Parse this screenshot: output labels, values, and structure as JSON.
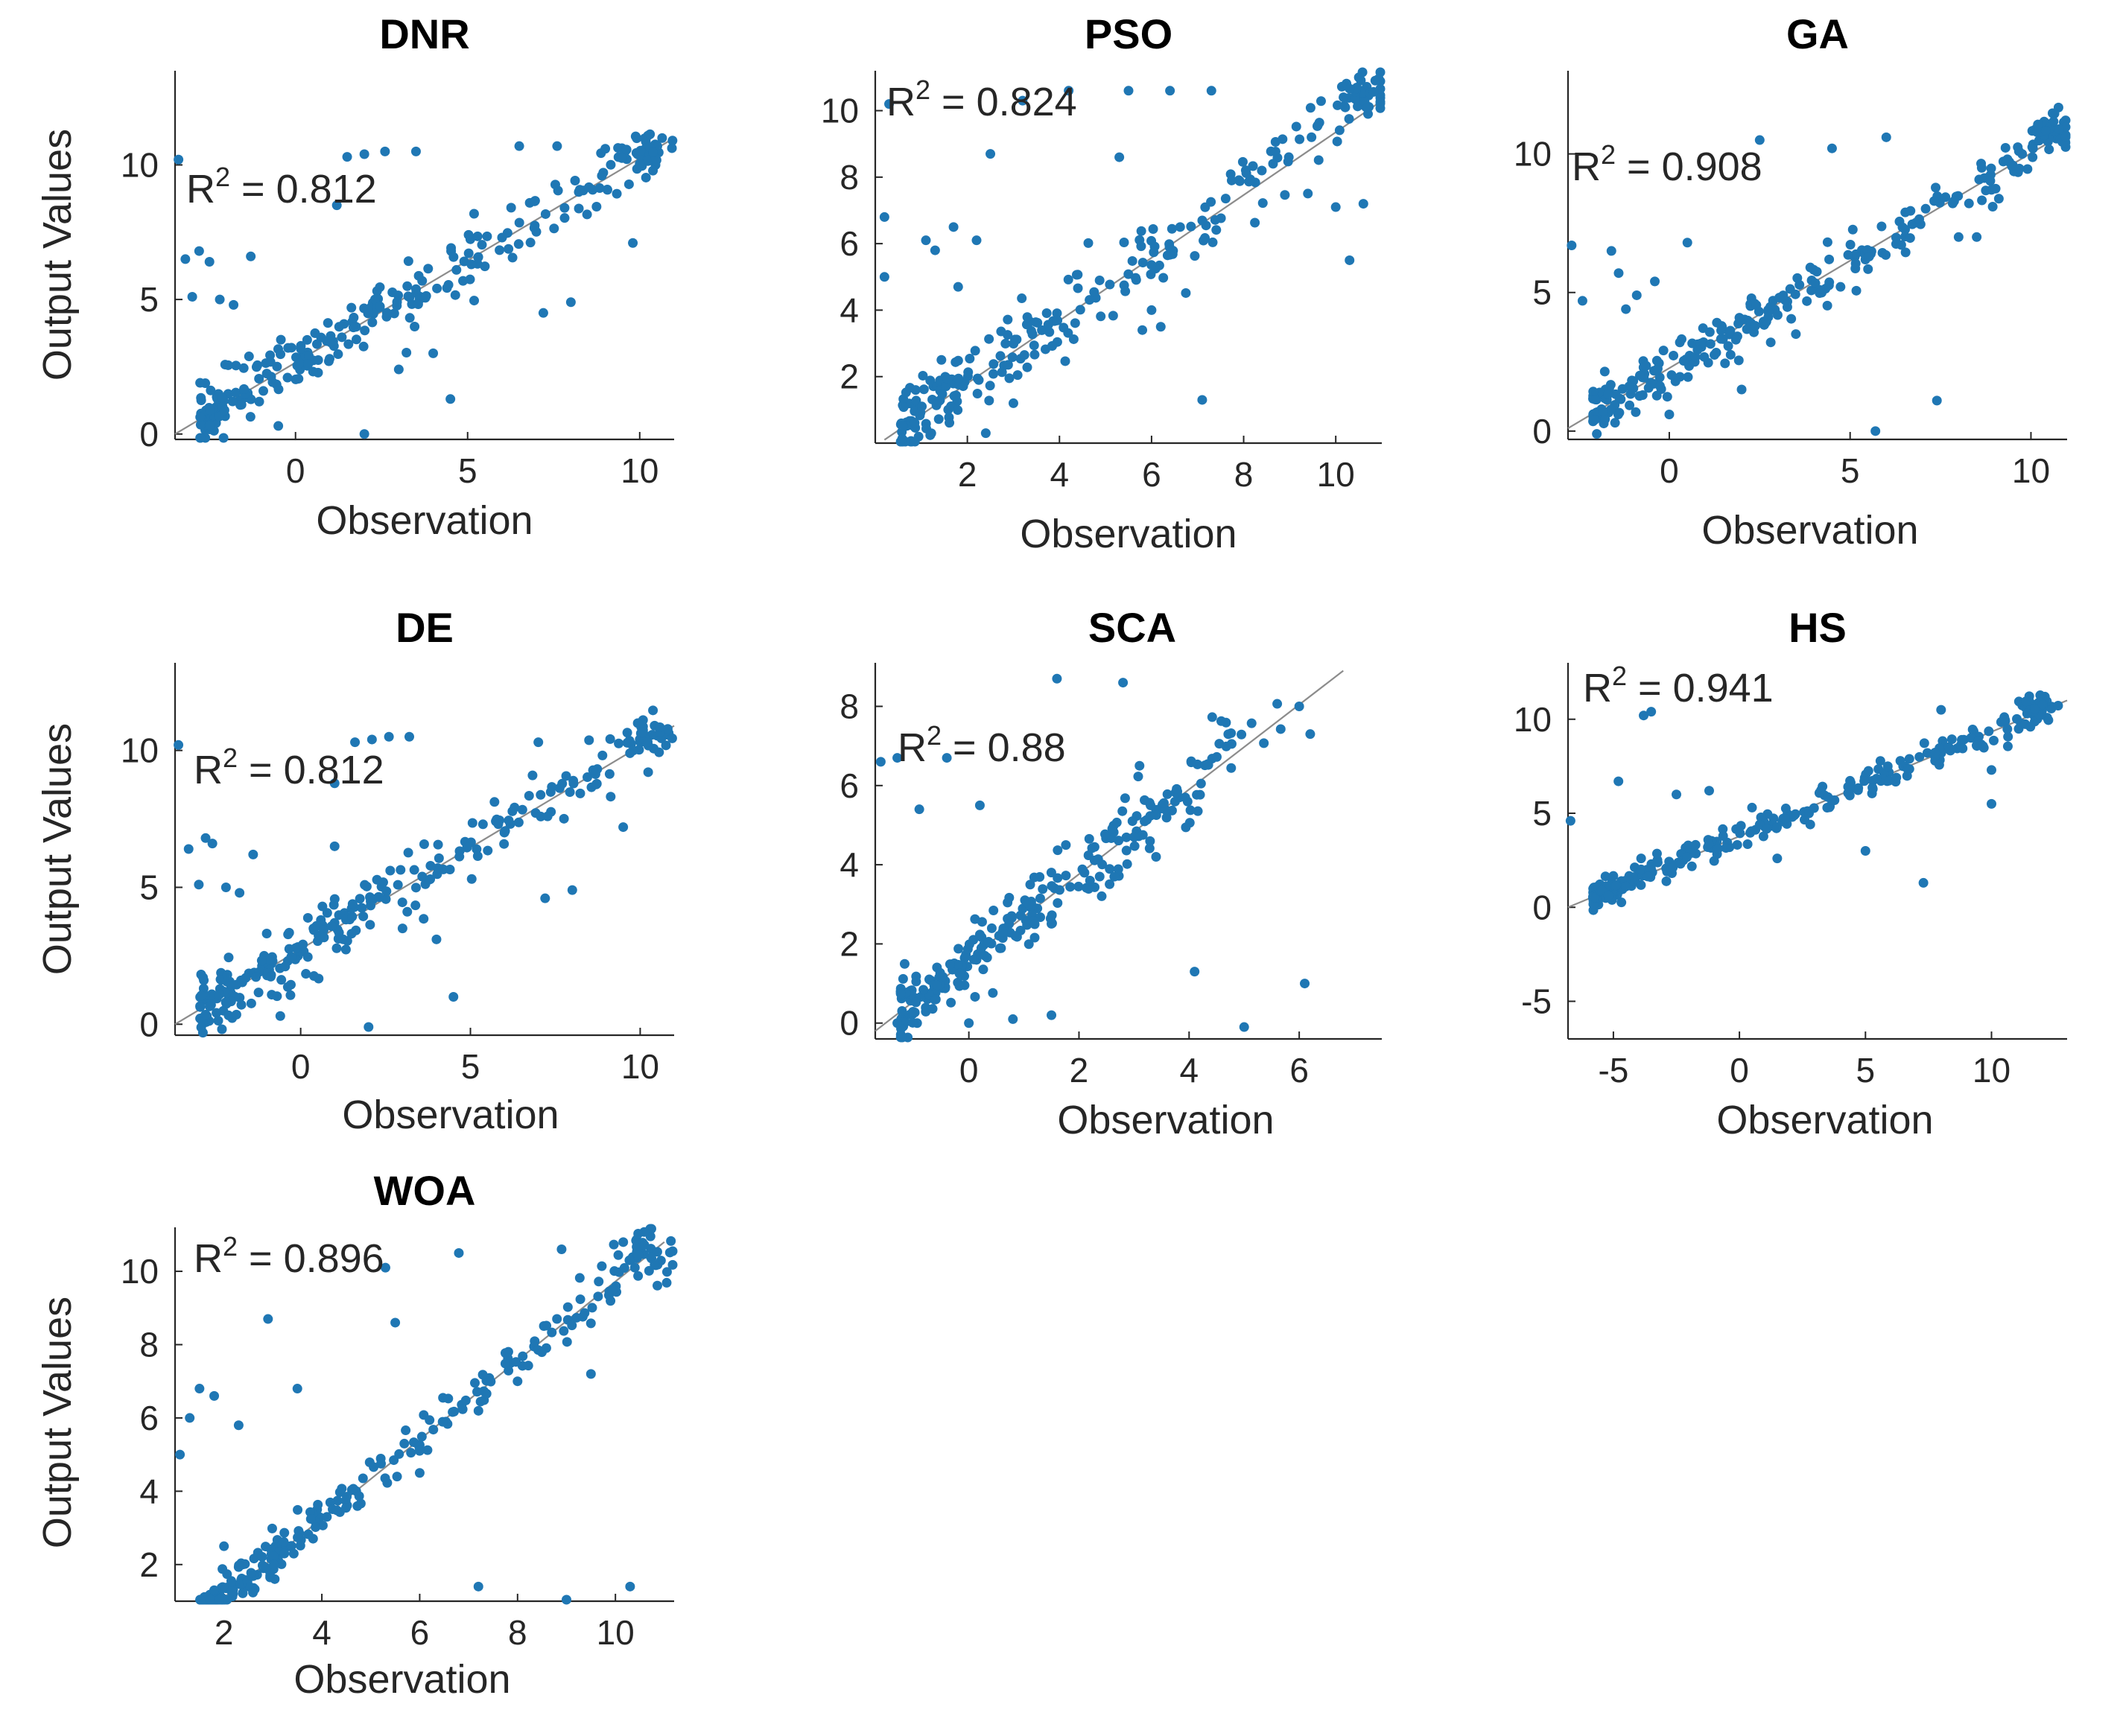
{
  "chart_data": [
    {
      "type": "scatter",
      "title": "DNR",
      "xlabel": "Observation",
      "ylabel": "Output Values",
      "xlim": [
        -3.5,
        11
      ],
      "ylim": [
        -0.2,
        13.5
      ],
      "xticks": [
        0,
        5,
        10
      ],
      "yticks": [
        0,
        5,
        10
      ],
      "r2_prefix": "R",
      "r2_exponent": "2",
      "r2_value": " = 0.812",
      "fit_line": [
        [
          -3.5,
          0.0
        ],
        [
          11,
          11.0
        ]
      ],
      "seed": 11,
      "points_core": 230,
      "core_spread": 0.55,
      "cluster": {
        "center": [
          10.2,
          10.4
        ],
        "n": 40,
        "spread": 0.35
      },
      "outliers": [
        [
          -3.4,
          10.2
        ],
        [
          -3.2,
          6.5
        ],
        [
          -3.0,
          5.1
        ],
        [
          -2.8,
          6.8
        ],
        [
          -2.5,
          6.4
        ],
        [
          -2.2,
          5.0
        ],
        [
          -1.8,
          4.8
        ],
        [
          -1.3,
          6.6
        ],
        [
          1.2,
          8.5
        ],
        [
          1.5,
          10.3
        ],
        [
          2.0,
          10.4
        ],
        [
          2.6,
          10.5
        ],
        [
          3.5,
          10.5
        ],
        [
          6.5,
          10.7
        ],
        [
          7.6,
          10.7
        ],
        [
          9.0,
          10.6
        ],
        [
          4.5,
          1.3
        ],
        [
          2.0,
          0.0
        ],
        [
          -0.5,
          0.3
        ],
        [
          7.2,
          4.5
        ],
        [
          8.0,
          4.9
        ],
        [
          9.8,
          7.1
        ],
        [
          6.0,
          7.3
        ],
        [
          3.0,
          2.4
        ],
        [
          4.0,
          3.0
        ]
      ]
    },
    {
      "type": "scatter",
      "title": "PSO",
      "xlabel": "Observation",
      "ylabel": "",
      "xlim": [
        0.0,
        11.0
      ],
      "ylim": [
        0.0,
        11.2
      ],
      "xticks": [
        2,
        4,
        6,
        8,
        10
      ],
      "yticks": [
        2,
        4,
        6,
        8,
        10
      ],
      "r2_prefix": "R",
      "r2_exponent": "2",
      "r2_value": " = 0.824",
      "fit_line": [
        [
          0.2,
          0.1
        ],
        [
          10.9,
          10.2
        ]
      ],
      "seed": 23,
      "points_core": 230,
      "core_spread": 0.6,
      "cluster": {
        "center": [
          10.6,
          10.5
        ],
        "n": 40,
        "spread": 0.35
      },
      "outliers": [
        [
          0.2,
          6.8
        ],
        [
          0.2,
          5.0
        ],
        [
          0.3,
          10.2
        ],
        [
          1.1,
          6.1
        ],
        [
          1.3,
          5.8
        ],
        [
          1.7,
          6.5
        ],
        [
          1.8,
          4.7
        ],
        [
          2.2,
          6.1
        ],
        [
          2.5,
          8.7
        ],
        [
          3.2,
          10.3
        ],
        [
          4.2,
          10.6
        ],
        [
          5.5,
          10.6
        ],
        [
          6.4,
          10.6
        ],
        [
          7.3,
          10.6
        ],
        [
          5.3,
          8.6
        ],
        [
          7.1,
          1.3
        ],
        [
          6.0,
          4.0
        ],
        [
          5.8,
          3.4
        ],
        [
          6.2,
          3.5
        ],
        [
          10.0,
          7.1
        ],
        [
          10.3,
          5.5
        ],
        [
          10.6,
          7.2
        ],
        [
          3.0,
          1.2
        ],
        [
          2.4,
          0.3
        ]
      ]
    },
    {
      "type": "scatter",
      "title": "GA",
      "xlabel": "Observation",
      "ylabel": "",
      "xlim": [
        -2.8,
        11.0
      ],
      "ylim": [
        -0.3,
        13.0
      ],
      "xticks": [
        0,
        5,
        10
      ],
      "yticks": [
        0,
        5,
        10
      ],
      "r2_prefix": "R",
      "r2_exponent": "2",
      "r2_value": " = 0.908",
      "fit_line": [
        [
          -2.8,
          0.1
        ],
        [
          11.0,
          10.8
        ]
      ],
      "seed": 37,
      "points_core": 240,
      "core_spread": 0.45,
      "cluster": {
        "center": [
          10.6,
          10.8
        ],
        "n": 38,
        "spread": 0.3
      },
      "outliers": [
        [
          -2.7,
          6.7
        ],
        [
          -2.4,
          4.7
        ],
        [
          -1.6,
          6.5
        ],
        [
          -1.4,
          5.7
        ],
        [
          -1.2,
          4.4
        ],
        [
          -0.9,
          4.9
        ],
        [
          -0.4,
          5.4
        ],
        [
          0.5,
          6.8
        ],
        [
          2.5,
          10.5
        ],
        [
          4.5,
          10.2
        ],
        [
          6.0,
          10.6
        ],
        [
          5.7,
          0.0
        ],
        [
          7.4,
          1.1
        ],
        [
          3.5,
          3.5
        ],
        [
          2.0,
          1.5
        ],
        [
          0.0,
          0.6
        ],
        [
          -1.5,
          0.3
        ],
        [
          8.0,
          7.0
        ],
        [
          8.5,
          7.0
        ]
      ]
    },
    {
      "type": "scatter",
      "title": "DE",
      "xlabel": "Observation",
      "ylabel": "Output Values",
      "xlim": [
        -3.7,
        11.0
      ],
      "ylim": [
        -0.4,
        13.2
      ],
      "xticks": [
        0,
        5,
        10
      ],
      "yticks": [
        0,
        5,
        10
      ],
      "r2_prefix": "R",
      "r2_exponent": "2",
      "r2_value": " = 0.812",
      "fit_line": [
        [
          -3.7,
          0.0
        ],
        [
          11.0,
          10.9
        ]
      ],
      "seed": 53,
      "points_core": 230,
      "core_spread": 0.55,
      "cluster": {
        "center": [
          10.2,
          10.4
        ],
        "n": 40,
        "spread": 0.35
      },
      "outliers": [
        [
          -3.6,
          10.2
        ],
        [
          -3.3,
          6.4
        ],
        [
          -3.0,
          5.1
        ],
        [
          -2.8,
          6.8
        ],
        [
          -2.6,
          6.6
        ],
        [
          -2.2,
          5.0
        ],
        [
          -1.8,
          4.8
        ],
        [
          -1.4,
          6.2
        ],
        [
          1.0,
          8.8
        ],
        [
          1.6,
          10.3
        ],
        [
          2.1,
          10.4
        ],
        [
          2.6,
          10.5
        ],
        [
          3.2,
          10.5
        ],
        [
          7.0,
          10.3
        ],
        [
          4.5,
          1.0
        ],
        [
          2.0,
          -0.1
        ],
        [
          -0.6,
          0.3
        ],
        [
          7.2,
          4.6
        ],
        [
          8.0,
          4.9
        ],
        [
          9.5,
          7.2
        ],
        [
          6.0,
          7.0
        ],
        [
          3.0,
          3.5
        ],
        [
          4.0,
          3.1
        ],
        [
          1.0,
          6.5
        ]
      ]
    },
    {
      "type": "scatter",
      "title": "SCA",
      "xlabel": "Observation",
      "ylabel": "",
      "xlim": [
        -1.7,
        7.5
      ],
      "ylim": [
        -0.4,
        9.1
      ],
      "xticks": [
        0,
        2,
        4,
        6
      ],
      "yticks": [
        0,
        2,
        4,
        6,
        8
      ],
      "r2_prefix": "R",
      "r2_exponent": "2",
      "r2_value": " = 0.88",
      "fit_line": [
        [
          -1.7,
          -0.2
        ],
        [
          6.8,
          8.9
        ]
      ],
      "seed": 71,
      "points_core": 240,
      "core_spread": 0.45,
      "cluster": {
        "center": [
          5.2,
          7.3
        ],
        "n": 10,
        "spread": 0.5
      },
      "outliers": [
        [
          -1.6,
          6.6
        ],
        [
          -1.3,
          6.7
        ],
        [
          -0.9,
          5.4
        ],
        [
          -0.4,
          6.7
        ],
        [
          0.2,
          5.5
        ],
        [
          1.6,
          8.7
        ],
        [
          2.8,
          8.6
        ],
        [
          3.1,
          6.5
        ],
        [
          3.3,
          5.5
        ],
        [
          4.1,
          1.3
        ],
        [
          5.0,
          -0.1
        ],
        [
          6.1,
          1.0
        ],
        [
          6.2,
          7.3
        ],
        [
          6.0,
          8.0
        ],
        [
          -0.6,
          0.6
        ],
        [
          0.0,
          0.0
        ],
        [
          0.8,
          0.1
        ],
        [
          1.5,
          0.2
        ],
        [
          2.2,
          3.6
        ],
        [
          3.4,
          4.2
        ],
        [
          -1.3,
          0.0
        ]
      ]
    },
    {
      "type": "scatter",
      "title": "HS",
      "xlabel": "Observation",
      "ylabel": "",
      "xlim": [
        -6.8,
        13.0
      ],
      "ylim": [
        -7.0,
        13.0
      ],
      "xticks": [
        -5,
        0,
        5,
        10
      ],
      "yticks": [
        -5,
        0,
        5,
        10
      ],
      "r2_prefix": "R",
      "r2_exponent": "2",
      "r2_value": " = 0.941",
      "fit_line": [
        [
          -6.8,
          0.0
        ],
        [
          13.0,
          11.0
        ]
      ],
      "seed": 89,
      "points_core": 250,
      "core_spread": 0.35,
      "cluster": {
        "center": [
          11.8,
          10.6
        ],
        "n": 40,
        "spread": 0.35
      },
      "outliers": [
        [
          -6.7,
          4.6
        ],
        [
          -4.8,
          6.7
        ],
        [
          -3.8,
          10.2
        ],
        [
          -3.5,
          10.4
        ],
        [
          -3.9,
          2.6
        ],
        [
          -2.5,
          6.0
        ],
        [
          -1.2,
          6.2
        ],
        [
          0.5,
          5.3
        ],
        [
          8.0,
          10.5
        ],
        [
          7.3,
          1.3
        ],
        [
          10.0,
          5.5
        ],
        [
          10.0,
          7.3
        ],
        [
          5.0,
          3.0
        ],
        [
          1.5,
          2.6
        ]
      ]
    },
    {
      "type": "scatter",
      "title": "WOA",
      "xlabel": "Observation",
      "ylabel": "Output Values",
      "xlim": [
        1.0,
        11.2
      ],
      "ylim": [
        1.0,
        11.2
      ],
      "xticks": [
        2,
        4,
        6,
        8,
        10
      ],
      "yticks": [
        2,
        4,
        6,
        8,
        10
      ],
      "r2_prefix": "R",
      "r2_exponent": "2",
      "r2_value": " = 0.896",
      "fit_line": [
        [
          2.0,
          1.1
        ],
        [
          11.0,
          10.8
        ]
      ],
      "seed": 97,
      "points_core": 230,
      "core_spread": 0.3,
      "cluster": {
        "center": [
          10.6,
          10.5
        ],
        "n": 40,
        "spread": 0.35
      },
      "outliers": [
        [
          1.1,
          5.0
        ],
        [
          1.3,
          6.0
        ],
        [
          1.5,
          6.8
        ],
        [
          1.8,
          6.6
        ],
        [
          2.3,
          5.8
        ],
        [
          2.9,
          8.7
        ],
        [
          3.5,
          6.8
        ],
        [
          5.3,
          10.1
        ],
        [
          5.5,
          8.6
        ],
        [
          6.8,
          10.5
        ],
        [
          8.9,
          10.6
        ],
        [
          2.0,
          2.5
        ],
        [
          1.8,
          1.3
        ],
        [
          7.2,
          1.4
        ],
        [
          9.0,
          1.0
        ],
        [
          10.3,
          1.4
        ],
        [
          6.0,
          4.5
        ],
        [
          8.0,
          7.0
        ],
        [
          9.5,
          7.2
        ]
      ]
    }
  ]
}
